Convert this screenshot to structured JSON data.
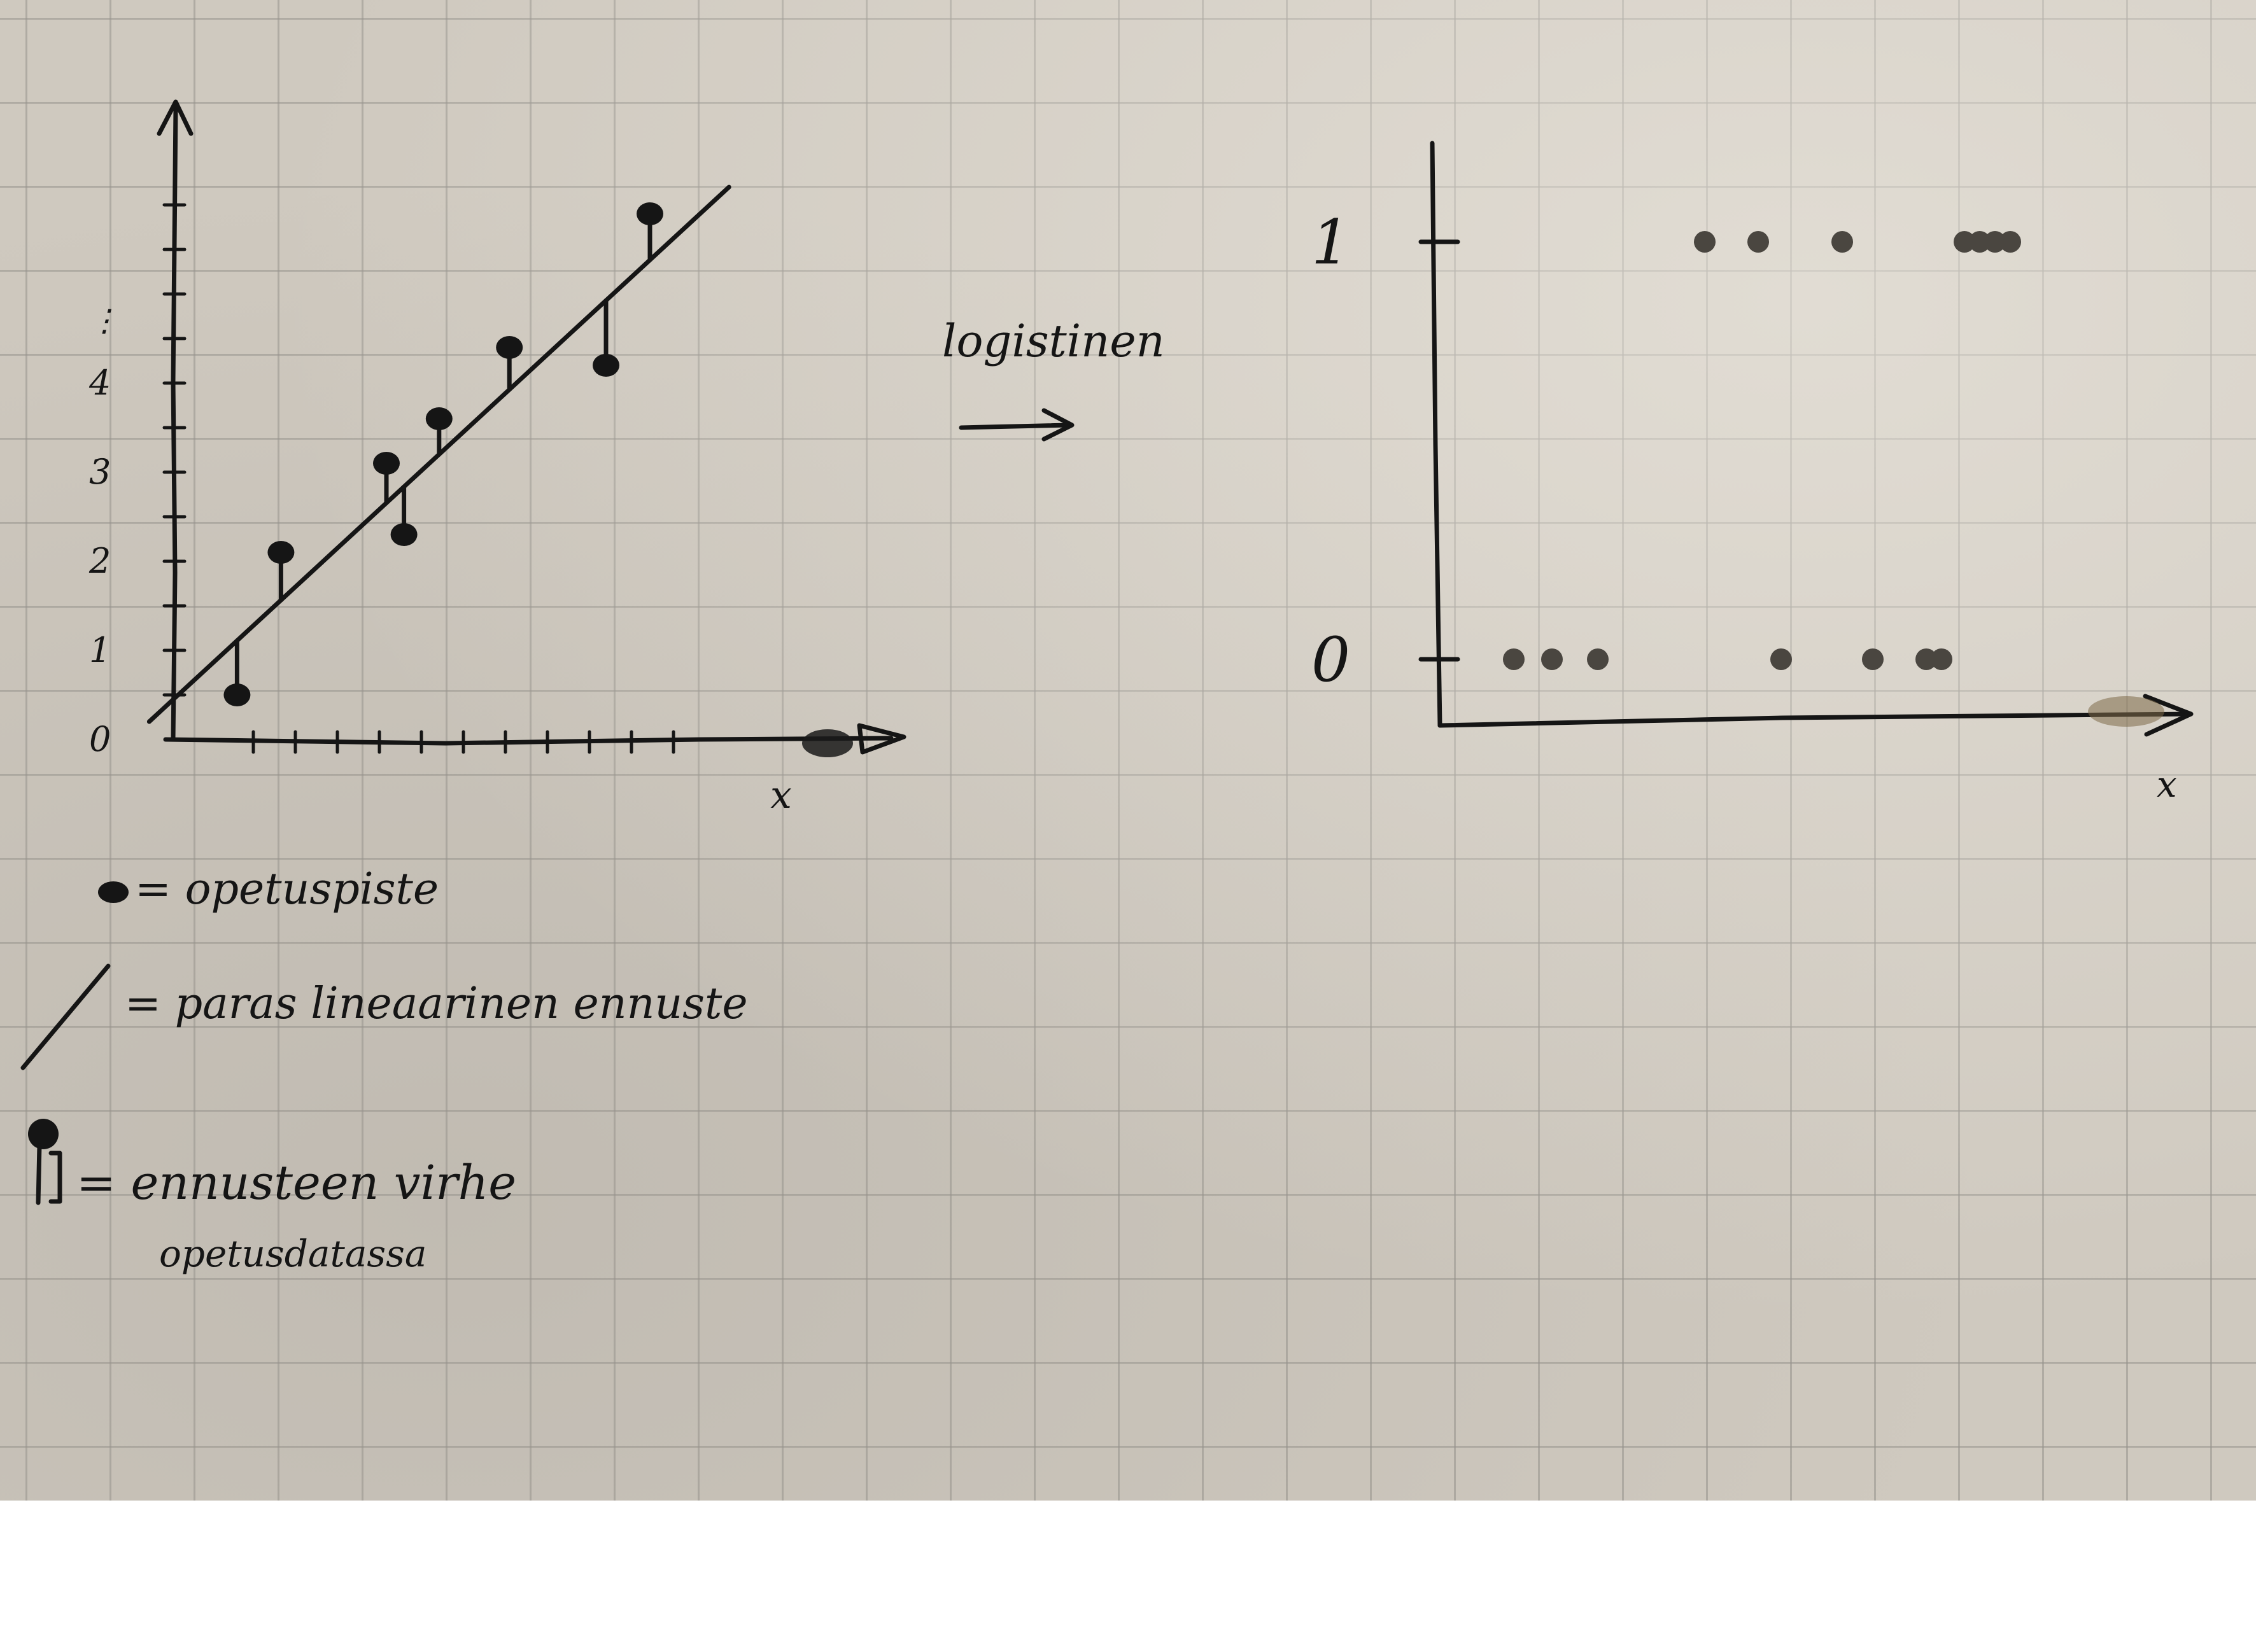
{
  "left_chart": {
    "type": "scatter",
    "xlabel": "x",
    "ylabel": "",
    "y_ticks": [
      "0",
      "1",
      "2",
      "3",
      "4"
    ],
    "y_ellipsis": "⋮",
    "ylim": [
      0,
      6.6
    ],
    "xlim": [
      0,
      7.7
    ],
    "points": [
      {
        "x": 0.8,
        "y": 0.5
      },
      {
        "x": 1.3,
        "y": 2.1
      },
      {
        "x": 2.5,
        "y": 3.1
      },
      {
        "x": 2.7,
        "y": 2.3
      },
      {
        "x": 3.1,
        "y": 3.6
      },
      {
        "x": 3.9,
        "y": 4.4
      },
      {
        "x": 5.0,
        "y": 4.2
      },
      {
        "x": 5.5,
        "y": 5.9
      }
    ],
    "fit_line": {
      "x": [
        -0.2,
        6.4
      ],
      "y": [
        0.2,
        6.2
      ]
    }
  },
  "right_chart": {
    "type": "scatter",
    "xlabel": "x",
    "ylabel": "",
    "y_ticks": [
      "0",
      "1"
    ],
    "ylim": [
      -0.15,
      1.2
    ],
    "xlim": [
      0,
      10
    ],
    "points": [
      {
        "x": 0.9,
        "y": 0
      },
      {
        "x": 1.4,
        "y": 0
      },
      {
        "x": 2.0,
        "y": 0
      },
      {
        "x": 4.4,
        "y": 0
      },
      {
        "x": 5.6,
        "y": 0
      },
      {
        "x": 6.3,
        "y": 0
      },
      {
        "x": 6.5,
        "y": 0
      },
      {
        "x": 3.4,
        "y": 1
      },
      {
        "x": 4.1,
        "y": 1
      },
      {
        "x": 5.2,
        "y": 1
      },
      {
        "x": 6.8,
        "y": 1
      },
      {
        "x": 7.0,
        "y": 1
      },
      {
        "x": 7.2,
        "y": 1
      },
      {
        "x": 7.4,
        "y": 1
      }
    ]
  },
  "chart_data": [
    {
      "type": "scatter",
      "xlabel": "x",
      "y_ticks": [
        "0",
        "1",
        "2",
        "3",
        "4"
      ],
      "x": [
        0.8,
        1.3,
        2.5,
        2.7,
        3.1,
        3.9,
        5.0,
        5.5
      ],
      "y": [
        0.5,
        2.1,
        3.1,
        2.3,
        3.6,
        4.4,
        4.2,
        5.9
      ],
      "fit_line": {
        "x": [
          -0.2,
          6.4
        ],
        "y": [
          0.2,
          6.2
        ]
      }
    },
    {
      "type": "scatter",
      "xlabel": "x",
      "y_ticks": [
        "0",
        "1"
      ],
      "x": [
        0.9,
        1.4,
        2.0,
        4.4,
        5.6,
        6.3,
        6.5,
        3.4,
        4.1,
        5.2,
        6.8,
        7.0,
        7.2,
        7.4
      ],
      "y": [
        0,
        0,
        0,
        0,
        0,
        0,
        0,
        1,
        1,
        1,
        1,
        1,
        1,
        1
      ]
    }
  ],
  "arrow_label": "logistinen",
  "legend": {
    "point": "= opetuspiste",
    "line": "= paras lineaarinen ennuste",
    "error": "= ennusteen virhe",
    "error_sub": "opetusdatassa"
  }
}
